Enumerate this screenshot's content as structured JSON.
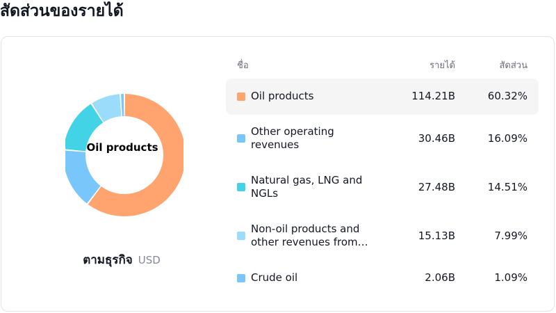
{
  "title": "สัดส่วนของรายได้",
  "table": {
    "headers": {
      "name": "ชื่อ",
      "revenue": "รายได้",
      "share": "สัดส่วน"
    }
  },
  "donut": {
    "center_label": "Oil products"
  },
  "footer": {
    "segment_label": "ตามธุรกิจ",
    "currency": "USD"
  },
  "chart_data": {
    "type": "pie",
    "categories": [
      "Oil products",
      "Other operating revenues",
      "Natural gas, LNG and NGLs",
      "Non-oil products and other revenues from…",
      "Crude oil"
    ],
    "values": [
      60.32,
      16.09,
      14.51,
      7.99,
      1.09
    ],
    "revenues": [
      "114.21B",
      "30.46B",
      "27.48B",
      "15.13B",
      "2.06B"
    ],
    "shares": [
      "60.32%",
      "16.09%",
      "14.51%",
      "7.99%",
      "1.09%"
    ],
    "colors": [
      "#FFA36F",
      "#79C6FB",
      "#42D3E6",
      "#9BDCFB",
      "#79C6FB"
    ],
    "highlighted": "Oil products"
  }
}
